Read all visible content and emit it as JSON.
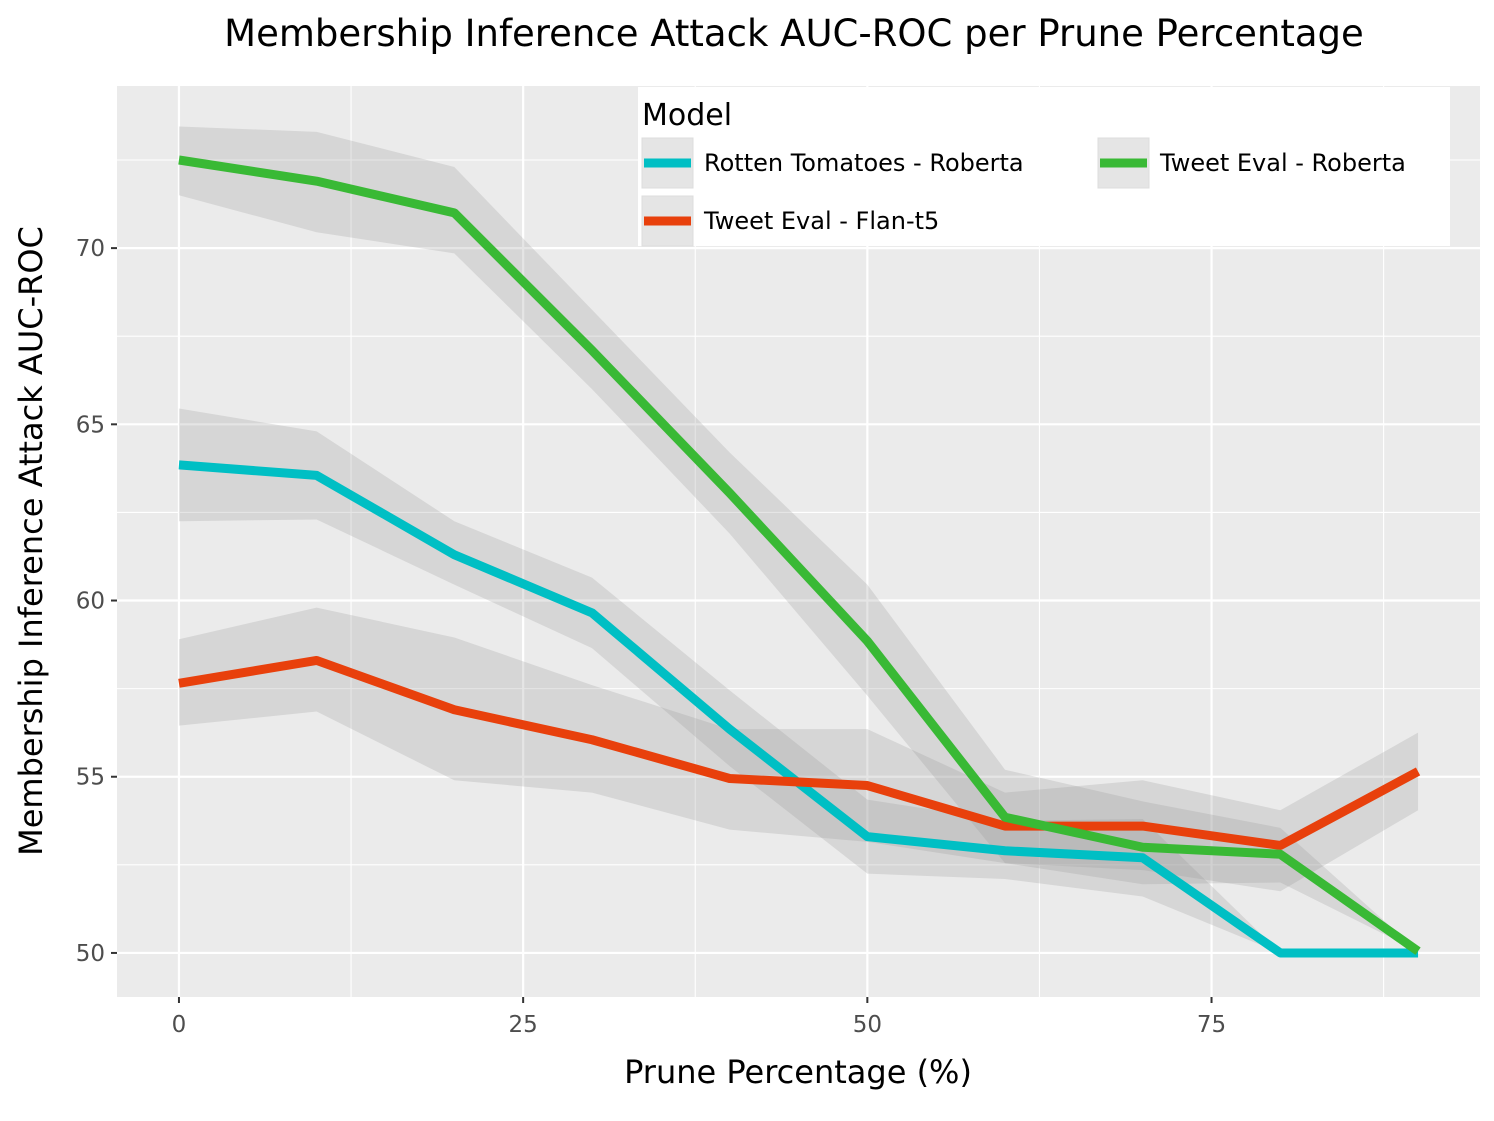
{
  "chart_data": {
    "type": "line",
    "title": "Membership Inference Attack AUC-ROC per Prune Percentage",
    "xlabel": "Prune Percentage (%)",
    "ylabel": "Membership Inference Attack AUC-ROC",
    "xlim": [
      -4.5,
      94.5
    ],
    "ylim": [
      48.75,
      74.6
    ],
    "x_ticks": [
      0,
      25,
      50,
      75
    ],
    "y_ticks": [
      50,
      55,
      60,
      65,
      70
    ],
    "x_tick_labels": [
      "0",
      "25",
      "50",
      "75"
    ],
    "y_tick_labels": [
      "50",
      "55",
      "60",
      "65",
      "70"
    ],
    "grid": true,
    "legend": {
      "title": "Model",
      "placement": "top-right inside"
    },
    "x": [
      0,
      10,
      20,
      30,
      40,
      50,
      60,
      70,
      80,
      90
    ],
    "series": [
      {
        "name": "Rotten Tomatoes - Roberta",
        "color": "#00bfc4",
        "values": [
          63.85,
          63.55,
          61.3,
          59.65,
          56.35,
          53.3,
          52.9,
          52.7,
          50.0,
          50.0
        ],
        "ci_low": [
          62.25,
          62.3,
          60.45,
          58.65,
          55.3,
          52.25,
          52.1,
          51.6,
          50.0,
          50.0
        ],
        "ci_high": [
          65.45,
          64.8,
          62.25,
          60.65,
          57.45,
          54.35,
          53.75,
          53.8,
          50.0,
          50.0
        ]
      },
      {
        "name": "Tweet Eval - Flan-t5",
        "color": "#e8400c",
        "values": [
          57.65,
          58.3,
          56.9,
          56.05,
          54.95,
          54.75,
          53.6,
          53.6,
          53.05,
          55.15
        ],
        "ci_low": [
          56.45,
          56.85,
          54.9,
          54.55,
          53.5,
          53.15,
          52.55,
          52.35,
          51.75,
          54.05
        ],
        "ci_high": [
          58.9,
          59.8,
          58.95,
          57.6,
          56.35,
          56.35,
          54.55,
          54.9,
          54.05,
          56.25
        ]
      },
      {
        "name": "Tweet Eval - Roberta",
        "color": "#39b935",
        "values": [
          72.5,
          71.9,
          71.0,
          67.1,
          63.05,
          58.85,
          53.85,
          53.0,
          52.8,
          50.05
        ],
        "ci_low": [
          71.5,
          70.45,
          69.85,
          66.0,
          61.9,
          57.3,
          52.55,
          51.95,
          52.0,
          50.05
        ],
        "ci_high": [
          73.45,
          73.3,
          72.3,
          68.25,
          64.2,
          60.45,
          55.2,
          54.3,
          53.55,
          50.05
        ]
      }
    ]
  }
}
